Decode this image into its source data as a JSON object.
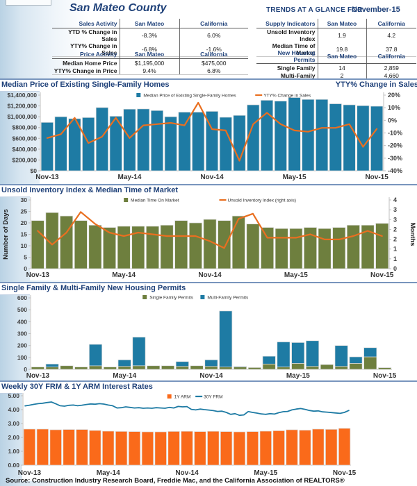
{
  "header": {
    "county_title": "San Mateo County",
    "trends_label": "TRENDS AT A GLANCE FOR",
    "period": "November-15",
    "tables": [
      {
        "title": "Sales Activity",
        "cols": [
          "San Mateo",
          "California"
        ],
        "rows": [
          [
            "YTD % Change in Sales",
            "-8.3%",
            "6.0%"
          ],
          [
            "YTY% Change in Sales",
            "-6.8%",
            "-1.6%"
          ]
        ]
      },
      {
        "title": "Supply Indicators",
        "cols": [
          "San Mateo",
          "California"
        ],
        "rows": [
          [
            "Unsold Inventory Index",
            "1.9",
            "4.2"
          ],
          [
            "Median Time of Market",
            "19.8",
            "37.8"
          ]
        ]
      },
      {
        "title": "Price Activity",
        "cols": [
          "San Mateo",
          "California"
        ],
        "rows": [
          [
            "Median Home Price",
            "$1,195,000",
            "$475,000"
          ],
          [
            "YTY% Change in Price",
            "9.4%",
            "6.8%"
          ]
        ]
      },
      {
        "title": "New Housing Permits",
        "cols": [
          "San Mateo",
          "California"
        ],
        "rows": [
          [
            "Single Family",
            "14",
            "2,859"
          ],
          [
            "Multi-Family",
            "2",
            "4,660"
          ]
        ]
      }
    ]
  },
  "colors": {
    "navy": "#1F4179",
    "bar_blue": "#1E7BA4",
    "line_orange": "#E96F20",
    "olive": "#6E7F3E",
    "arm_orange": "#FA6A1A",
    "axis_gray": "#BFBFBF",
    "tick_text": "#404040"
  },
  "source": "Source: Construction Industry Research Board, Freddie Mac, and the California Association of REALTORS®",
  "chart_data": [
    {
      "type": "bar",
      "title": "Median Price of Existing Single-Family Homes",
      "right_title": "YTY% Change in Sales",
      "categories": [
        "Nov-13",
        "Dec-13",
        "Jan-14",
        "Feb-14",
        "Mar-14",
        "Apr-14",
        "May-14",
        "Jun-14",
        "Jul-14",
        "Aug-14",
        "Sep-14",
        "Oct-14",
        "Nov-14",
        "Dec-14",
        "Jan-15",
        "Feb-15",
        "Mar-15",
        "Apr-15",
        "May-15",
        "Jun-15",
        "Jul-15",
        "Aug-15",
        "Sep-15",
        "Oct-15",
        "Nov-15"
      ],
      "bar_series": [
        {
          "name": "Median Price of Existing Single-Family Homes",
          "color": "#1E7BA4",
          "values": [
            895000,
            1000000,
            965000,
            985000,
            1170000,
            1010000,
            1140000,
            1145000,
            1115000,
            1000000,
            1085000,
            1085000,
            1100000,
            990000,
            1025000,
            1220000,
            1305000,
            1290000,
            1355000,
            1320000,
            1320000,
            1240000,
            1220000,
            1205000,
            1195000
          ]
        }
      ],
      "line_series": [
        {
          "name": "YTY% Change in Sales",
          "color": "#E96F20",
          "axis": "right",
          "values": [
            -14,
            -11,
            2,
            -18,
            -13,
            2,
            -14,
            -4,
            -3,
            -2,
            -4,
            14,
            -7,
            -8,
            -32,
            -3,
            6,
            -3,
            -8,
            -9,
            -6,
            -6,
            -3,
            -21,
            -6.8
          ]
        }
      ],
      "left_axis": {
        "min": 0,
        "max": 1400000,
        "tick_labels": [
          "$1,400,000",
          "$1,200,000",
          "$1,000,000",
          "$800,000",
          "$600,000",
          "$400,000",
          "$200,000",
          "$0"
        ]
      },
      "right_axis": {
        "min": -40,
        "max": 20,
        "tick_labels": [
          "20%",
          "10%",
          "0%",
          "-10%",
          "-20%",
          "-30%",
          "-40%"
        ]
      },
      "x_tick_labels": [
        {
          "index": 0,
          "label": "Nov-13"
        },
        {
          "index": 6,
          "label": "May-14"
        },
        {
          "index": 12,
          "label": "Nov-14"
        },
        {
          "index": 18,
          "label": "May-15"
        },
        {
          "index": 24,
          "label": "Nov-15"
        }
      ],
      "legend": [
        {
          "marker": "square",
          "color": "#1E7BA4",
          "label": "Median Price of Existing Single-Family Homes"
        },
        {
          "marker": "line",
          "color": "#E96F20",
          "label": "YTY% Change in Sales"
        }
      ]
    },
    {
      "type": "bar",
      "title": "Unsold Inventory Index & Median Time of Market",
      "categories": [
        "Nov-13",
        "Dec-13",
        "Jan-14",
        "Feb-14",
        "Mar-14",
        "Apr-14",
        "May-14",
        "Jun-14",
        "Jul-14",
        "Aug-14",
        "Sep-14",
        "Oct-14",
        "Nov-14",
        "Dec-14",
        "Jan-15",
        "Feb-15",
        "Mar-15",
        "Apr-15",
        "May-15",
        "Jun-15",
        "Jul-15",
        "Aug-15",
        "Sep-15",
        "Oct-15",
        "Nov-15"
      ],
      "bar_series": [
        {
          "name": "Median Time On Market",
          "color": "#6E7F3E",
          "values": [
            21,
            24.5,
            23,
            21,
            19,
            18,
            18.5,
            18.5,
            18.5,
            19,
            21,
            20,
            21.5,
            21,
            23,
            19.5,
            18,
            17.5,
            17.5,
            18,
            17.5,
            18,
            19,
            19,
            19.8
          ]
        }
      ],
      "line_series": [
        {
          "name": "Unsold Inventory Index (right axis)",
          "color": "#E96F20",
          "axis": "right",
          "values": [
            2.2,
            1.4,
            2.1,
            3.3,
            2.6,
            2.1,
            1.9,
            2.1,
            2.0,
            1.9,
            1.9,
            1.9,
            1.6,
            1.2,
            2.9,
            3.2,
            1.8,
            1.8,
            1.8,
            2.0,
            1.7,
            1.7,
            1.9,
            2.2,
            1.9
          ]
        }
      ],
      "left_axis": {
        "min": 0,
        "max": 30,
        "title": "Number of Days",
        "tick_labels": [
          "30",
          "25",
          "20",
          "15",
          "10",
          "5",
          "0"
        ]
      },
      "right_axis": {
        "min": 0,
        "max": 4,
        "title": "Months",
        "tick_labels": [
          "4",
          "3",
          "3",
          "2",
          "2",
          "1",
          "1",
          "0"
        ]
      },
      "x_tick_labels": [
        {
          "index": 0,
          "label": "Nov-13"
        },
        {
          "index": 6,
          "label": "May-14"
        },
        {
          "index": 12,
          "label": "Nov-14"
        },
        {
          "index": 18,
          "label": "May-15"
        },
        {
          "index": 24,
          "label": "Nov-15"
        }
      ],
      "legend": [
        {
          "marker": "square",
          "color": "#6E7F3E",
          "label": "Median Time On Market"
        },
        {
          "marker": "line",
          "color": "#E96F20",
          "label": "Unsold Inventory Index (right axis)"
        }
      ]
    },
    {
      "type": "bar",
      "title": "Single Family & Multi-Family New Housing Permits",
      "categories": [
        "Nov-13",
        "Dec-13",
        "Jan-14",
        "Feb-14",
        "Mar-14",
        "Apr-14",
        "May-14",
        "Jun-14",
        "Jul-14",
        "Aug-14",
        "Sep-14",
        "Oct-14",
        "Nov-14",
        "Dec-14",
        "Jan-15",
        "Feb-15",
        "Mar-15",
        "Apr-15",
        "May-15",
        "Jun-15",
        "Jul-15",
        "Aug-15",
        "Sep-15",
        "Oct-15",
        "Nov-15"
      ],
      "bar_series": [
        {
          "name": "Single Family Permits",
          "color": "#6E7F3E",
          "values": [
            20,
            20,
            30,
            20,
            30,
            20,
            25,
            30,
            30,
            30,
            25,
            30,
            25,
            20,
            20,
            15,
            45,
            20,
            50,
            25,
            40,
            25,
            50,
            105,
            14
          ]
        },
        {
          "name": "Multi-Family Permits",
          "color": "#1E7BA4",
          "values": [
            0,
            25,
            0,
            0,
            180,
            0,
            55,
            240,
            0,
            0,
            40,
            0,
            55,
            470,
            5,
            0,
            65,
            210,
            175,
            215,
            0,
            175,
            55,
            77,
            2
          ]
        }
      ],
      "left_axis": {
        "min": 0,
        "max": 600,
        "tick_labels": [
          "600",
          "500",
          "400",
          "300",
          "200",
          "100",
          "0"
        ]
      },
      "x_tick_labels": [
        {
          "index": 0,
          "label": "Nov-13"
        },
        {
          "index": 6,
          "label": "May-14"
        },
        {
          "index": 12,
          "label": "Nov-14"
        },
        {
          "index": 18,
          "label": "May-15"
        },
        {
          "index": 24,
          "label": "Nov-15"
        }
      ],
      "legend": [
        {
          "marker": "square",
          "color": "#6E7F3E",
          "label": "Single Family Permits"
        },
        {
          "marker": "square",
          "color": "#1E7BA4",
          "label": "Multi-Family Permits"
        }
      ]
    },
    {
      "type": "bar",
      "title": "Weekly 30Y FRM & 1Y ARM Interest Rates",
      "categories": [
        "Nov-13",
        "Dec-13",
        "Jan-14",
        "Feb-14",
        "Mar-14",
        "Apr-14",
        "May-14",
        "Jun-14",
        "Jul-14",
        "Aug-14",
        "Sep-14",
        "Oct-14",
        "Nov-14",
        "Dec-14",
        "Jan-15",
        "Feb-15",
        "Mar-15",
        "Apr-15",
        "May-15",
        "Jun-15",
        "Jul-15",
        "Aug-15",
        "Sep-15",
        "Oct-15",
        "Nov-15"
      ],
      "bar_series": [
        {
          "name": "1Y ARM",
          "color": "#FA6A1A",
          "values": [
            2.6,
            2.6,
            2.55,
            2.57,
            2.57,
            2.5,
            2.45,
            2.43,
            2.42,
            2.4,
            2.4,
            2.43,
            2.44,
            2.42,
            2.44,
            2.42,
            2.4,
            2.42,
            2.45,
            2.48,
            2.55,
            2.52,
            2.6,
            2.58,
            2.65
          ]
        }
      ],
      "line_series": [
        {
          "name": "30Y FRM",
          "color": "#1E7BA4",
          "axis": "left",
          "values": [
            4.27,
            4.32,
            4.38,
            4.43,
            4.46,
            4.51,
            4.55,
            4.42,
            4.28,
            4.25,
            4.31,
            4.33,
            4.28,
            4.32,
            4.37,
            4.41,
            4.39,
            4.43,
            4.4,
            4.33,
            4.28,
            4.12,
            4.14,
            4.2,
            4.16,
            4.12,
            4.14,
            4.1,
            4.12,
            4.1,
            4.14,
            4.12,
            4.1,
            4.16,
            4.12,
            4.23,
            4.2,
            4.22,
            4.02,
            3.98,
            4.04,
            4.0,
            3.97,
            3.93,
            3.87,
            3.89,
            3.8,
            3.66,
            3.71,
            3.59,
            3.62,
            3.86,
            3.8,
            3.75,
            3.69,
            3.66,
            3.71,
            3.68,
            3.78,
            3.85,
            3.87,
            3.98,
            4.04,
            4.08,
            4.02,
            3.94,
            3.89,
            3.91,
            3.84,
            3.82,
            3.79,
            3.76,
            3.73,
            3.8,
            3.94
          ]
        }
      ],
      "left_axis": {
        "min": 0,
        "max": 5,
        "tick_labels": [
          "5.00",
          "4.00",
          "3.00",
          "2.00",
          "1.00",
          "0.00"
        ]
      },
      "x_tick_labels": [
        {
          "index": 0,
          "label": "Nov-13"
        },
        {
          "index": 6,
          "label": "May-14"
        },
        {
          "index": 12,
          "label": "Nov-14"
        },
        {
          "index": 18,
          "label": "May-15"
        },
        {
          "index": 24,
          "label": "Nov-15"
        }
      ],
      "legend": [
        {
          "marker": "square",
          "color": "#FA6A1A",
          "label": "1Y ARM"
        },
        {
          "marker": "line",
          "color": "#1E7BA4",
          "label": "30Y FRM"
        }
      ]
    }
  ]
}
